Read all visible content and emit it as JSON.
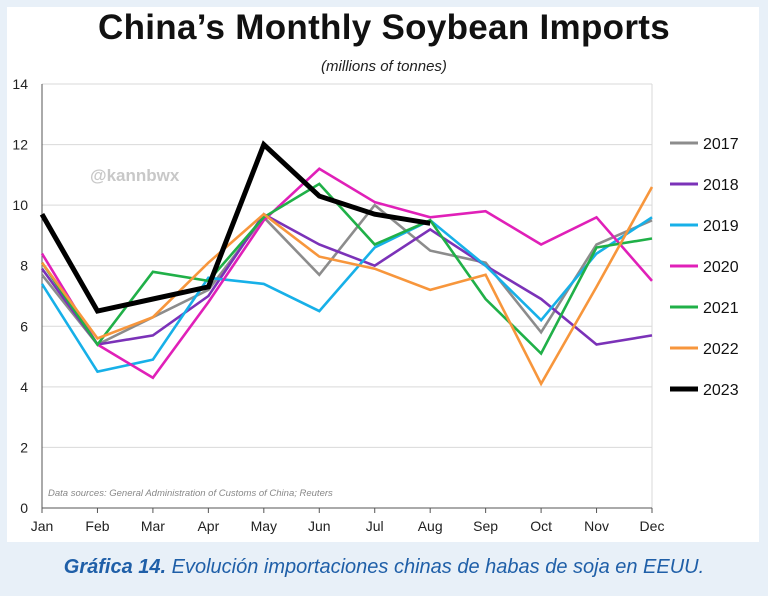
{
  "chart_data": {
    "type": "line",
    "title": "China’s Monthly Soybean Imports",
    "subtitle": "(millions of tonnes)",
    "watermark": "@kannbwx",
    "source": "Data sources: General Administration of Customs of China; Reuters",
    "categories": [
      "Jan",
      "Feb",
      "Mar",
      "Apr",
      "May",
      "Jun",
      "Jul",
      "Aug",
      "Sep",
      "Oct",
      "Nov",
      "Dec"
    ],
    "ylim": [
      0,
      14
    ],
    "yticks": [
      0,
      2,
      4,
      6,
      8,
      10,
      12,
      14
    ],
    "grid": "horizontal",
    "legend_position": "right",
    "series": [
      {
        "name": "2017",
        "color": "#8c8c8c",
        "values": [
          7.7,
          5.4,
          6.3,
          7.2,
          9.6,
          7.7,
          10.0,
          8.5,
          8.1,
          5.8,
          8.7,
          9.5
        ]
      },
      {
        "name": "2018",
        "color": "#7b32b8",
        "values": [
          7.9,
          5.4,
          5.7,
          7.0,
          9.7,
          8.7,
          8.0,
          9.2,
          8.0,
          6.9,
          5.4,
          5.7
        ]
      },
      {
        "name": "2019",
        "color": "#17b0e8",
        "values": [
          7.4,
          4.5,
          4.9,
          7.6,
          7.4,
          6.5,
          8.6,
          9.5,
          8.0,
          6.2,
          8.4,
          9.6
        ]
      },
      {
        "name": "2020",
        "color": "#e020b8",
        "values": [
          8.4,
          5.4,
          4.3,
          6.8,
          9.5,
          11.2,
          10.1,
          9.6,
          9.8,
          8.7,
          9.6,
          7.5
        ]
      },
      {
        "name": "2021",
        "color": "#20b048",
        "values": [
          8.1,
          5.4,
          7.8,
          7.5,
          9.6,
          10.7,
          8.7,
          9.5,
          6.9,
          5.1,
          8.6,
          8.9
        ]
      },
      {
        "name": "2022",
        "color": "#f7963c",
        "values": [
          8.1,
          5.6,
          6.3,
          8.1,
          9.7,
          8.3,
          7.9,
          7.2,
          7.7,
          4.1,
          7.3,
          10.6
        ]
      },
      {
        "name": "2023",
        "color": "#000000",
        "values": [
          9.7,
          6.5,
          6.9,
          7.3,
          12.0,
          10.3,
          9.7,
          9.4,
          null,
          null,
          null,
          null
        ]
      }
    ]
  },
  "caption": {
    "bold": "Gráfica 14.",
    "text": " Evolución importaciones chinas de habas de soja en EEUU."
  }
}
